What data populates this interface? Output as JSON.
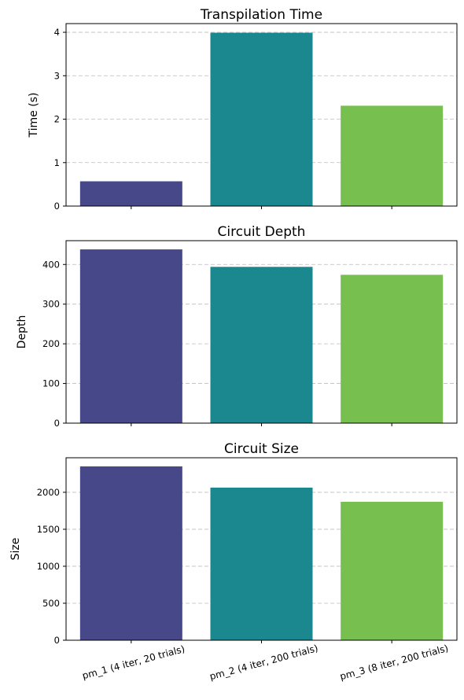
{
  "chart_data": [
    {
      "type": "bar",
      "title": "Transpilation Time",
      "ylabel": "Time (s)",
      "xlabel": "",
      "categories": [
        "pm_1 (4 iter, 20 trials)",
        "pm_2 (4 iter, 200 trials)",
        "pm_3 (8 iter, 200 trials)"
      ],
      "values": [
        0.57,
        3.99,
        2.31
      ],
      "ylim": [
        0,
        4.2
      ],
      "yticks": [
        0,
        1,
        2,
        3,
        4
      ],
      "grid": "y-dashed"
    },
    {
      "type": "bar",
      "title": "Circuit Depth",
      "ylabel": "Depth",
      "xlabel": "",
      "categories": [
        "pm_1 (4 iter, 20 trials)",
        "pm_2 (4 iter, 200 trials)",
        "pm_3 (8 iter, 200 trials)"
      ],
      "values": [
        438,
        394,
        374
      ],
      "ylim": [
        0,
        460
      ],
      "yticks": [
        0,
        100,
        200,
        300,
        400
      ],
      "grid": "y-dashed"
    },
    {
      "type": "bar",
      "title": "Circuit Size",
      "ylabel": "Size",
      "xlabel": "",
      "categories": [
        "pm_1 (4 iter, 20 trials)",
        "pm_2 (4 iter, 200 trials)",
        "pm_3 (8 iter, 200 trials)"
      ],
      "values": [
        2350,
        2063,
        1872
      ],
      "ylim": [
        0,
        2467
      ],
      "yticks": [
        0,
        500,
        1000,
        1500,
        2000
      ],
      "grid": "y-dashed"
    }
  ],
  "bar_colors": [
    "#46488a",
    "#1b878e",
    "#77c04f"
  ],
  "shared_x_tick_labels": [
    "pm_1 (4 iter, 20 trials)",
    "pm_2 (4 iter, 200 trials)",
    "pm_3 (8 iter, 200 trials)"
  ]
}
